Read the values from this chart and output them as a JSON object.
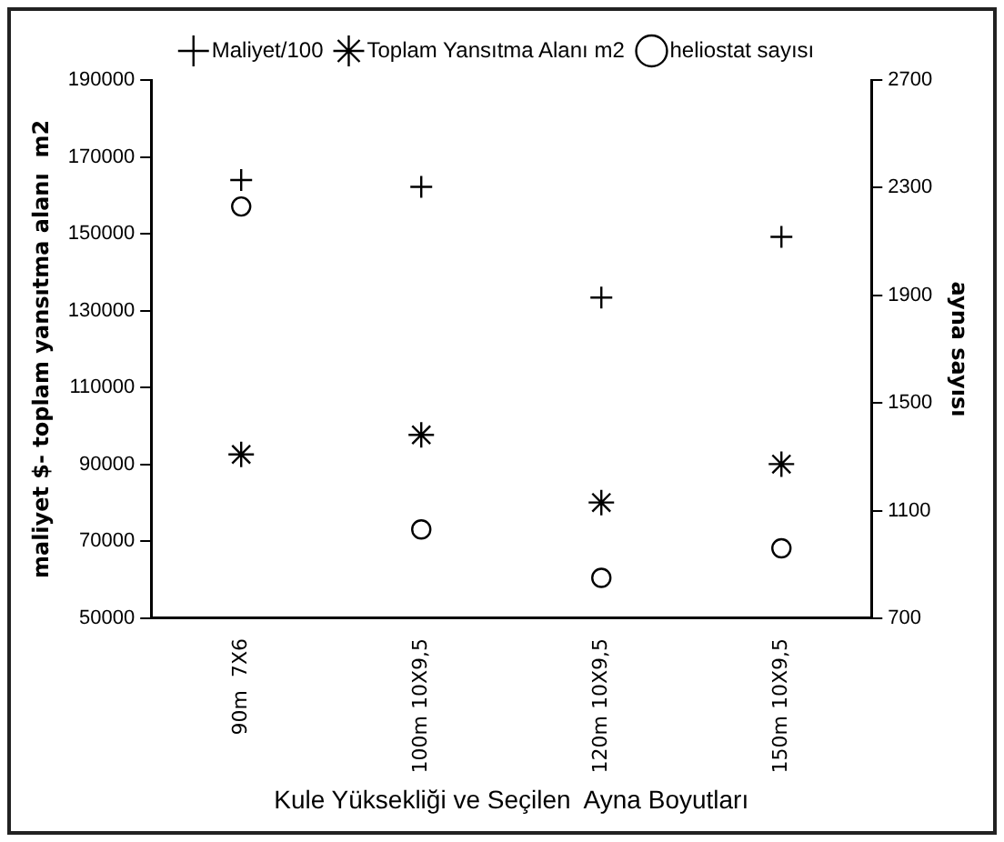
{
  "chart_data": {
    "type": "scatter",
    "xlabel": "Kule Yüksekliği ve Seçilen  Ayna Boyutları",
    "ylabel": "maliyet $- toplam yansıtma alanı  m2",
    "y2label": "ayna sayısı",
    "categories": [
      "90m  7X6",
      "100m 10X9,5",
      "120m 10X9,5",
      "150m 10X9,5"
    ],
    "series": [
      {
        "name": "Maliyet/100",
        "color": "#000000",
        "marker": "cross",
        "values": [
          164000,
          162200,
          133400,
          149200
        ]
      },
      {
        "name": "Toplam Yansıtma Alanı m2",
        "color": "#000000",
        "marker": "cross",
        "values": [
          92600,
          97700,
          80100,
          90100
        ]
      },
      {
        "name": "heliostat sayısı",
        "color": "#000000",
        "marker": "circle",
        "axis": "y2",
        "values": [
          2230,
          1030,
          850,
          960
        ]
      }
    ],
    "ylim": [
      50000,
      190000
    ],
    "yticks": [
      50000,
      70000,
      90000,
      110000,
      130000,
      150000,
      170000,
      190000
    ],
    "y2lim": [
      700,
      2700
    ],
    "y2ticks": [
      700,
      1100,
      1500,
      1900,
      2300,
      2700
    ],
    "grid": false,
    "legend": "top"
  }
}
